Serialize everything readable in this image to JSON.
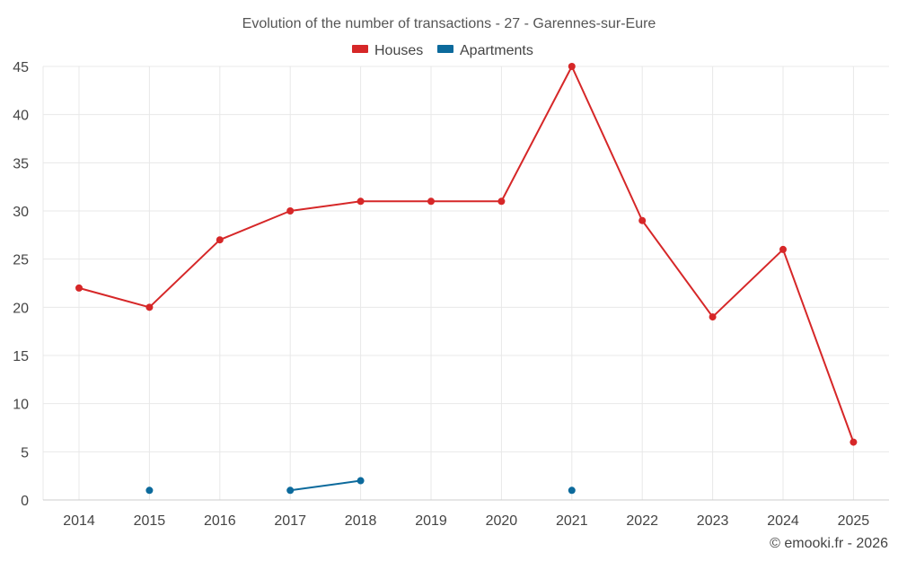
{
  "chart_data": {
    "type": "line",
    "title": "Evolution of the number of transactions - 27 - Garennes-sur-Eure",
    "xlabel": "",
    "ylabel": "",
    "categories": [
      "2014",
      "2015",
      "2016",
      "2017",
      "2018",
      "2019",
      "2020",
      "2021",
      "2022",
      "2023",
      "2024",
      "2025"
    ],
    "yticks": [
      0,
      5,
      10,
      15,
      20,
      25,
      30,
      35,
      40,
      45
    ],
    "ylim": [
      0,
      45
    ],
    "grid": true,
    "legend_position": "top-center",
    "series": [
      {
        "name": "Houses",
        "color": "#d62728",
        "values": [
          22,
          20,
          27,
          30,
          31,
          31,
          31,
          45,
          29,
          19,
          26,
          6
        ]
      },
      {
        "name": "Apartments",
        "color": "#0c6a9c",
        "values": [
          null,
          1,
          null,
          1,
          2,
          null,
          null,
          1,
          null,
          null,
          null,
          null
        ]
      }
    ]
  },
  "credit": "© emooki.fr - 2026"
}
